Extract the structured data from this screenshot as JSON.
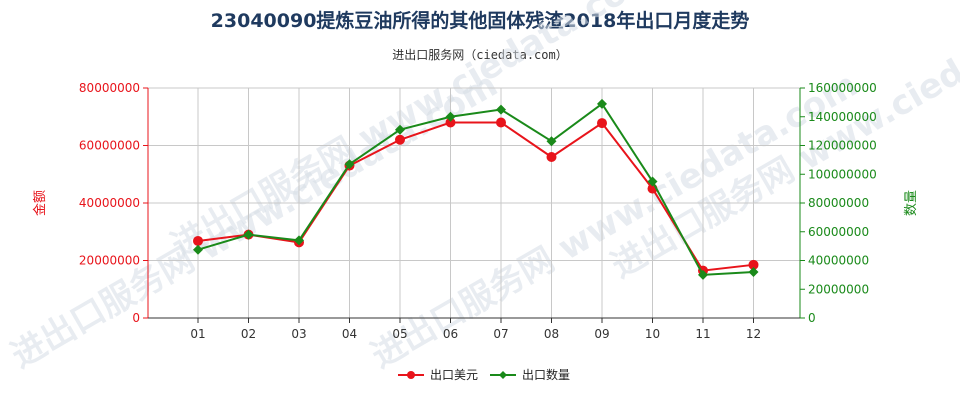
{
  "title": "23040090提炼豆油所得的其他固体残渣2018年出口月度走势",
  "subtitle": "进出口服务网（ciedata.com）",
  "watermark": "进出口服务网 www.ciedata.com",
  "colors": {
    "usd": "#e8141b",
    "qty": "#1a8a1a",
    "grid": "#c8c8c8",
    "title": "#1f3a5f"
  },
  "chart_data": {
    "type": "line",
    "categories": [
      "01",
      "02",
      "03",
      "04",
      "05",
      "06",
      "07",
      "08",
      "09",
      "10",
      "11",
      "12"
    ],
    "y_left": {
      "label": "金额",
      "ylim": [
        0,
        80000000
      ],
      "ticks": [
        "0",
        "20000000",
        "40000000",
        "60000000",
        "80000000"
      ]
    },
    "y_right": {
      "label": "数量",
      "ylim": [
        0,
        160000000
      ],
      "ticks": [
        "0",
        "20000000",
        "40000000",
        "60000000",
        "80000000",
        "100000000",
        "120000000",
        "140000000",
        "160000000"
      ]
    },
    "series": [
      {
        "name": "出口美元",
        "axis": "left",
        "color": "#e8141b",
        "values": [
          26800000,
          29000000,
          26300000,
          53000000,
          62000000,
          68000000,
          68000000,
          56000000,
          67800000,
          45000000,
          16500000,
          18500000
        ]
      },
      {
        "name": "出口数量",
        "axis": "right",
        "color": "#1a8a1a",
        "values": [
          47500000,
          58000000,
          54000000,
          107000000,
          131000000,
          140000000,
          145000000,
          123000000,
          149000000,
          95000000,
          30000000,
          32000000
        ]
      }
    ],
    "grid": true,
    "legend": "bottom-center"
  }
}
